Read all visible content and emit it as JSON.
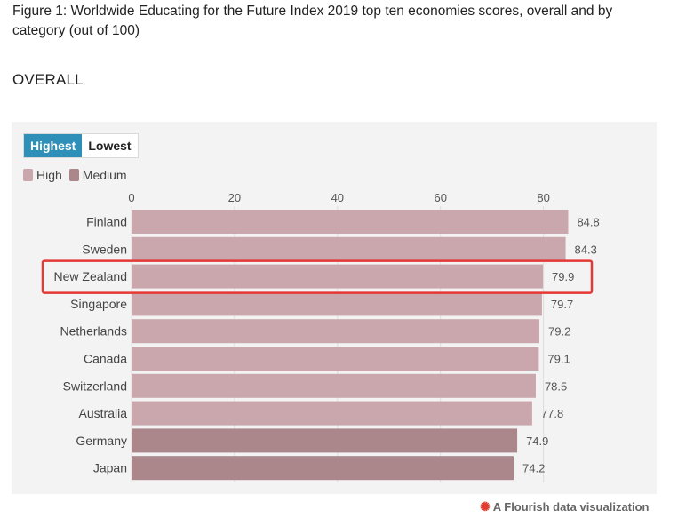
{
  "figure": {
    "title": "Figure 1: Worldwide Educating for the Future Index 2019 top ten economies scores, overall and by category (out of 100)",
    "section": "OVERALL"
  },
  "controls": {
    "highest_label": "Highest",
    "lowest_label": "Lowest",
    "selected": "Highest"
  },
  "legend": [
    {
      "label": "High",
      "color": "#c9a7ac"
    },
    {
      "label": "Medium",
      "color": "#ab878c"
    }
  ],
  "footer": {
    "text": "A Flourish data visualization",
    "icon": "flourish-burst-icon"
  },
  "highlight": {
    "category": "New Zealand",
    "color": "#e53935"
  },
  "chart_data": {
    "type": "bar",
    "orientation": "horizontal",
    "categories": [
      "Finland",
      "Sweden",
      "New Zealand",
      "Singapore",
      "Netherlands",
      "Canada",
      "Switzerland",
      "Australia",
      "Germany",
      "Japan"
    ],
    "values": [
      84.8,
      84.3,
      79.9,
      79.7,
      79.2,
      79.1,
      78.5,
      77.8,
      74.9,
      74.2
    ],
    "levels": [
      "High",
      "High",
      "High",
      "High",
      "High",
      "High",
      "High",
      "High",
      "Medium",
      "Medium"
    ],
    "xticks": [
      0,
      20,
      40,
      60,
      80
    ],
    "xlim": [
      0,
      88
    ],
    "grid": true,
    "data_labels": true,
    "title": "",
    "xlabel": "",
    "ylabel": ""
  }
}
